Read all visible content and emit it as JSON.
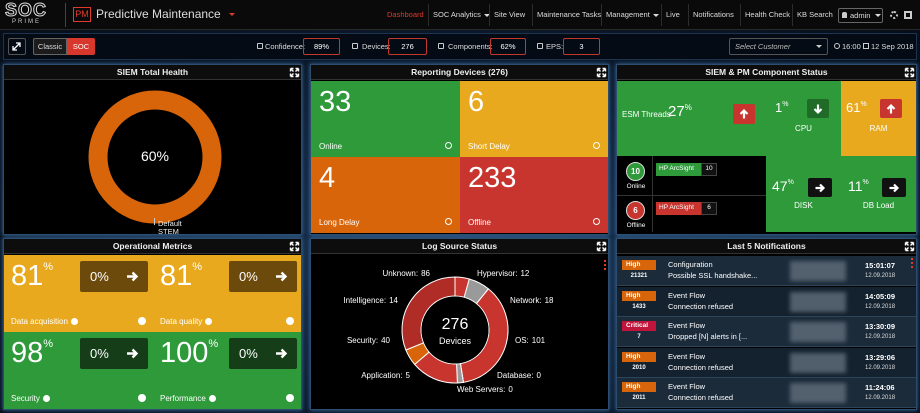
{
  "nav": {
    "logo": "SOC",
    "logo_sub": "PRIME",
    "app_badge": "PM",
    "app_title": "Predictive Maintenance",
    "menu": [
      "Dashboard",
      "SOC Analytics",
      "Site View",
      "Maintenance Tasks",
      "Management",
      "Live",
      "Notifications",
      "Health Check",
      "KB Search"
    ],
    "user": "admin"
  },
  "toolbar": {
    "modes": [
      "Classic",
      "SOC"
    ],
    "stats": [
      {
        "label": "Confidence:",
        "value": "89%"
      },
      {
        "label": "Devices:",
        "value": "276"
      },
      {
        "label": "Components:",
        "value": "62%"
      },
      {
        "label": "EPS:",
        "value": "3"
      }
    ],
    "customer_placeholder": "Select Customer",
    "time": "16:00",
    "date": "12 Sep 2018"
  },
  "siem_health": {
    "title": "SIEM Total Health",
    "value": "60%",
    "label": [
      "Default",
      "STEM"
    ]
  },
  "reporting": {
    "title": "Reporting Devices (276)",
    "tiles": [
      {
        "value": "33",
        "label": "Online"
      },
      {
        "value": "6",
        "label": "Short Delay"
      },
      {
        "value": "4",
        "label": "Long Delay"
      },
      {
        "value": "233",
        "label": "Offline"
      }
    ]
  },
  "component_status": {
    "title": "SIEM & PM Component Status",
    "unit": "%",
    "esm": {
      "label": "ESM Threads",
      "value": "27"
    },
    "cpu": {
      "label": "CPU",
      "value": "1"
    },
    "ram": {
      "label": "RAM",
      "value": "61"
    },
    "disk": {
      "label": "DISK",
      "value": "47"
    },
    "db": {
      "label": "DB Load",
      "value": "11"
    },
    "online": {
      "count": "10",
      "label": "Online",
      "source": "HP ArcSight",
      "source_count": "10"
    },
    "offline": {
      "count": "6",
      "label": "Offline",
      "source": "HP ArcSight",
      "source_count": "6"
    }
  },
  "operational": {
    "title": "Operational Metrics",
    "unit": "%",
    "tiles": [
      {
        "value": "81",
        "label": "Data acquisition",
        "delta": "0%"
      },
      {
        "value": "81",
        "label": "Data quality",
        "delta": "0%"
      },
      {
        "value": "98",
        "label": "Security",
        "delta": "0%"
      },
      {
        "value": "100",
        "label": "Performance",
        "delta": "0%"
      }
    ]
  },
  "log_source": {
    "title": "Log Source Status",
    "total": "276",
    "total_label": "Devices",
    "segments": [
      {
        "name": "Hypervisor:",
        "value": 12,
        "color": "#c8352e"
      },
      {
        "name": "Network:",
        "value": 18,
        "color": "#9a9a9a"
      },
      {
        "name": "OS:",
        "value": 101,
        "color": "#c8352e"
      },
      {
        "name": "Database:",
        "value": 0,
        "color": "#9a9a9a"
      },
      {
        "name": "Web Servers:",
        "value": 0,
        "color": "#9a9a9a"
      },
      {
        "name": "Application:",
        "value": 5,
        "color": "#9a9a9a"
      },
      {
        "name": "Security:",
        "value": 40,
        "color": "#c8352e"
      },
      {
        "name": "Intelligence:",
        "value": 14,
        "color": "#d9650b"
      },
      {
        "name": "Unknown:",
        "value": 86,
        "color": "#b02c26"
      }
    ]
  },
  "notifications": {
    "title": "Last 5 Notifications",
    "rows": [
      {
        "severity": "High",
        "count": "21321",
        "type": "Configuration",
        "message": "Possible SSL handshake...",
        "time": "15:01:07",
        "date": "12.09.2018"
      },
      {
        "severity": "High",
        "count": "1433",
        "type": "Event Flow",
        "message": "Connection refused",
        "time": "14:05:09",
        "date": "12.09.2018"
      },
      {
        "severity": "Critical",
        "count": "7",
        "type": "Event Flow",
        "message": "Dropped [N] alerts in [...",
        "time": "13:30:09",
        "date": "12.09.2018"
      },
      {
        "severity": "High",
        "count": "2010",
        "type": "Event Flow",
        "message": "Connection refused",
        "time": "13:29:06",
        "date": "12.09.2018"
      },
      {
        "severity": "High",
        "count": "2011",
        "type": "Event Flow",
        "message": "Connection refused",
        "time": "11:24:06",
        "date": "12.09.2018"
      }
    ]
  }
}
